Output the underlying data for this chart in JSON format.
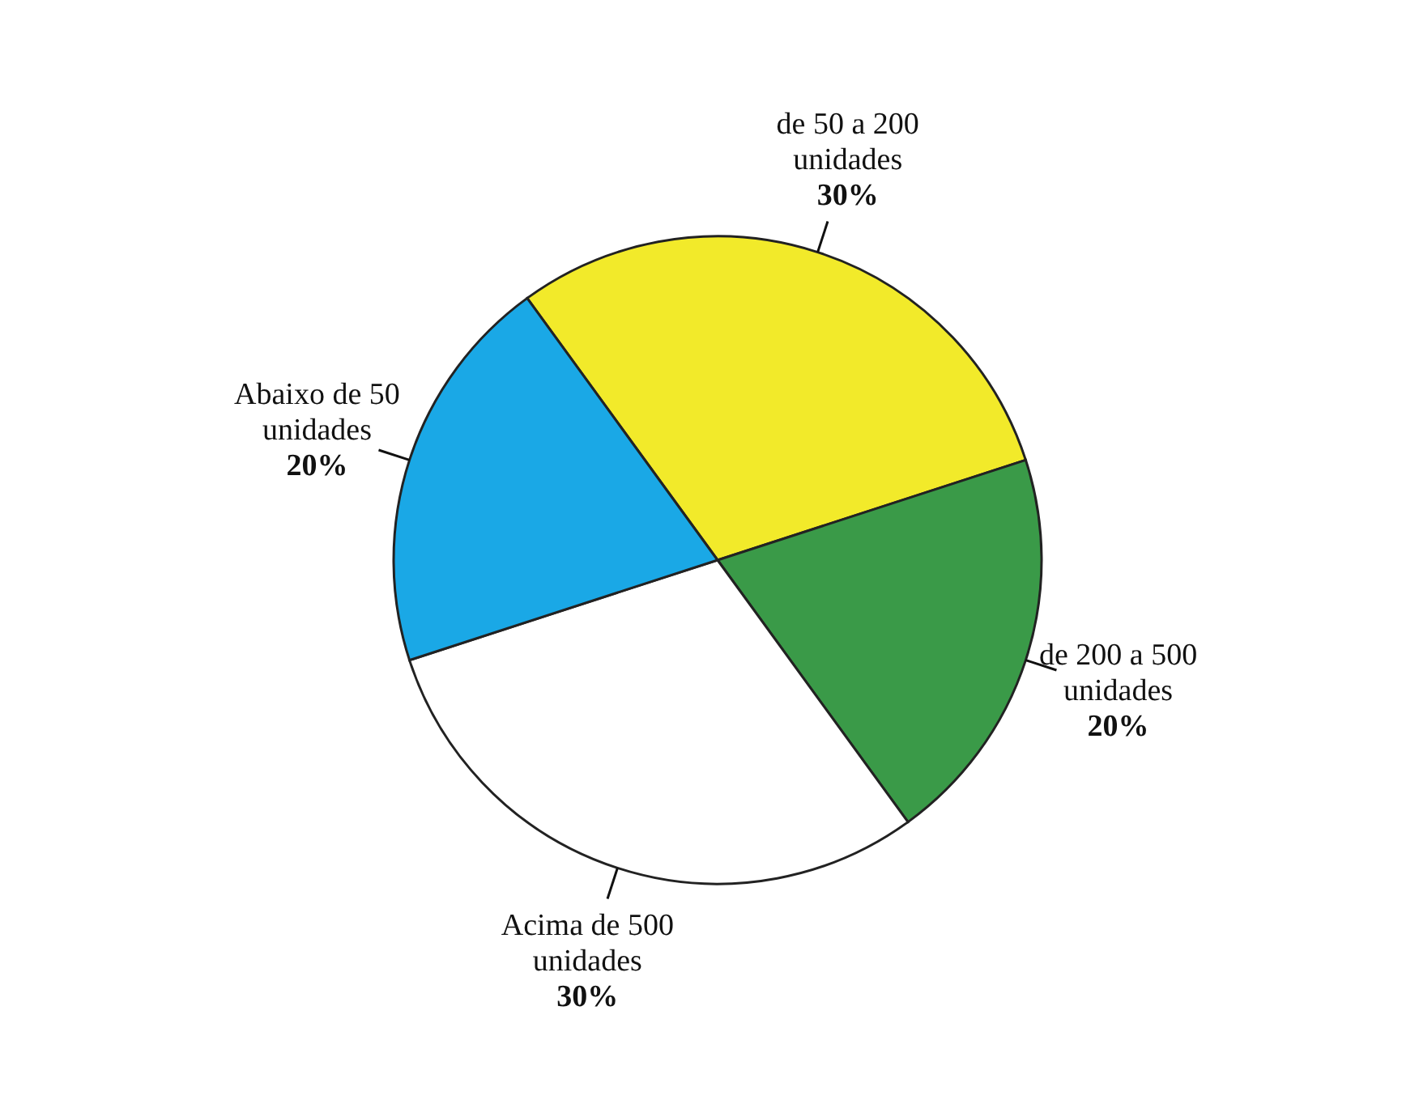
{
  "chart_data": {
    "type": "pie",
    "categories": [
      "de 50 a 200 unidades",
      "de 200 a 500 unidades",
      "Acima de 500 unidades",
      "Abaixo de 50 unidades"
    ],
    "values": [
      30,
      20,
      30,
      20
    ],
    "value_labels": [
      "30%",
      "20%",
      "30%",
      "20%"
    ],
    "colors": [
      "#f2ea2a",
      "#3a9a48",
      "#ffffff",
      "#1aa8e6"
    ]
  }
}
